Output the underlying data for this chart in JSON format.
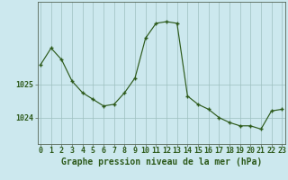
{
  "x": [
    0,
    1,
    2,
    3,
    4,
    5,
    6,
    7,
    8,
    9,
    10,
    11,
    12,
    13,
    14,
    15,
    16,
    17,
    18,
    19,
    20,
    21,
    22,
    23
  ],
  "y": [
    1025.6,
    1026.1,
    1025.75,
    1025.1,
    1024.75,
    1024.55,
    1024.35,
    1024.4,
    1024.75,
    1025.2,
    1026.4,
    1026.85,
    1026.9,
    1026.85,
    1024.65,
    1024.4,
    1024.25,
    1024.0,
    1023.85,
    1023.75,
    1023.75,
    1023.65,
    1024.2,
    1024.25
  ],
  "line_color": "#2d5a1b",
  "marker_color": "#2d5a1b",
  "bg_color": "#cce8ee",
  "plot_bg_color": "#cce8ee",
  "grid_color": "#9dbfbf",
  "ylabel_ticks": [
    1024,
    1025
  ],
  "xlabel": "Graphe pression niveau de la mer (hPa)",
  "ylim_min": 1023.2,
  "ylim_max": 1027.5,
  "tick_fontsize": 6.0,
  "label_fontsize": 7.0
}
